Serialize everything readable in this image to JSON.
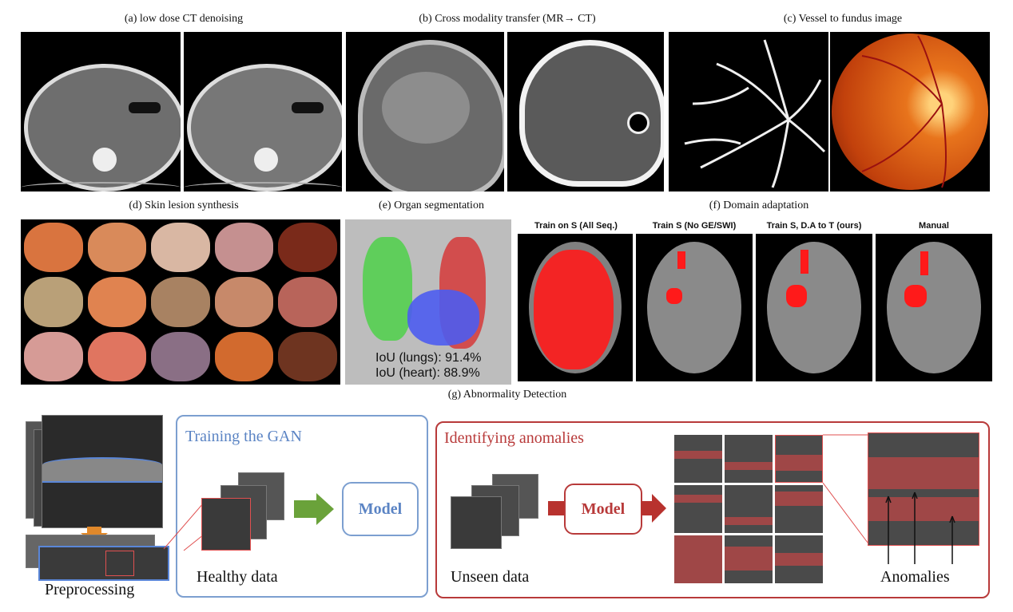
{
  "panels": {
    "a_caption": "(a) low dose CT denoising",
    "b_caption": "(b) Cross modality transfer (MR→ CT)",
    "c_caption": "(c) Vessel to fundus image",
    "d_caption": "(d) Skin lesion synthesis",
    "e_caption": "(e) Organ segmentation",
    "f_caption": "(f) Domain adaptation",
    "g_caption": "(g) Abnormality Detection"
  },
  "organ_seg": {
    "iou_lungs": "IoU (lungs): 91.4%",
    "iou_heart": "IoU (heart): 88.9%"
  },
  "domain_adaptation": {
    "headers": [
      "Train on S (All Seq.)",
      "Train S (No GE/SWI)",
      "Train S, D.A to T (ours)",
      "Manual"
    ]
  },
  "abnormality": {
    "preprocessing": "Preprocessing",
    "training_title": "Training the GAN",
    "healthy_data": "Healthy data",
    "model_label": "Model",
    "identify_title": "Identifying anomalies",
    "unseen_data": "Unseen data",
    "model_label_2": "Model",
    "anomalies": "Anomalies"
  },
  "colors": {
    "lungs_left": "#4fd14a",
    "lungs_right": "#d63a3a",
    "heart": "#4c5cf0",
    "training_border": "#7c9fd0",
    "identify_border": "#b83a3a",
    "green_arrow": "#6aa23a",
    "red_arrow": "#b8322e",
    "orange_arrow": "#e0882a"
  }
}
